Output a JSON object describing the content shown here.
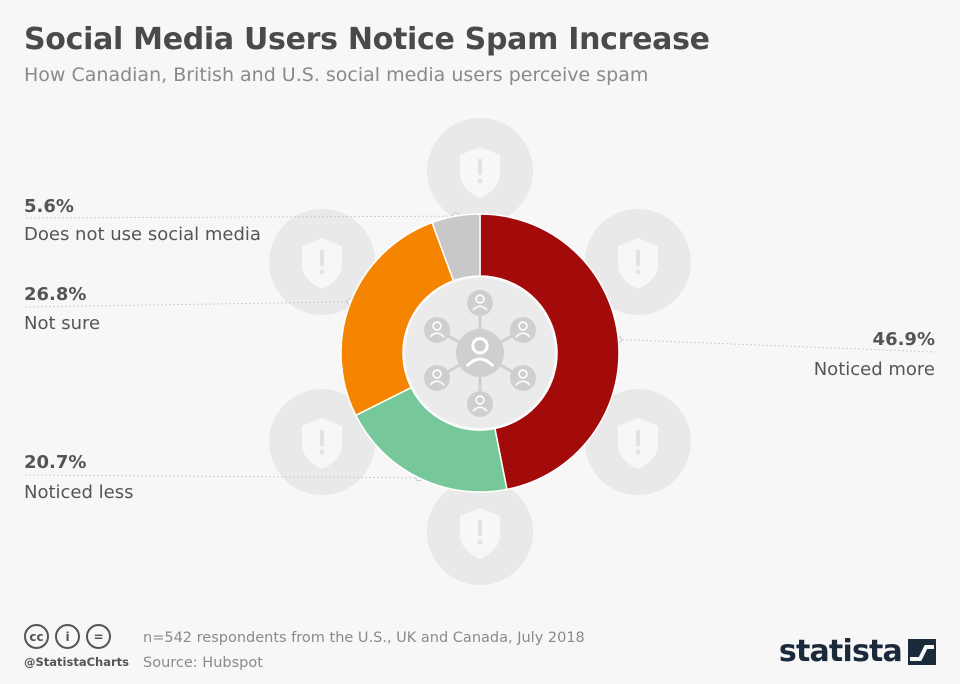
{
  "title": "Social Media Users Notice Spam Increase",
  "subtitle": "How Canadian, British and U.S. social media users perceive spam",
  "chart_data": {
    "type": "pie",
    "style": "donut",
    "title": "Social Media Users Notice Spam Increase",
    "categories": [
      "Noticed more",
      "Noticed less",
      "Not sure",
      "Does not use social media"
    ],
    "values": [
      46.9,
      20.7,
      26.8,
      5.6
    ],
    "value_labels": [
      "46.9%",
      "20.7%",
      "26.8%",
      "5.6%"
    ],
    "unit": "%",
    "colors": [
      "#a30a0a",
      "#76c89a",
      "#f58400",
      "#c8c8c8"
    ]
  },
  "footer": {
    "note": "n=542 respondents from the U.S., UK and Canada, July 2018",
    "source": "Source: Hubspot",
    "handle": "@StatistaCharts",
    "license_icons": [
      "cc",
      "by",
      "nd"
    ],
    "brand": "statista"
  }
}
